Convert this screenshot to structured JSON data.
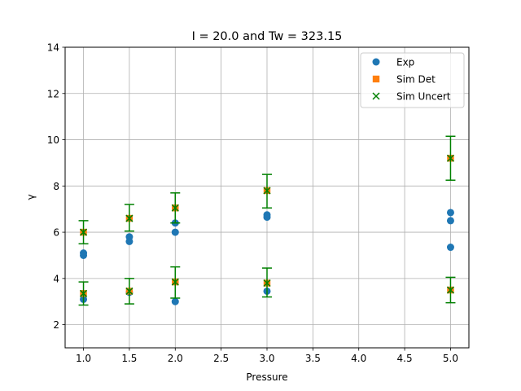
{
  "chart_data": {
    "type": "scatter",
    "title": "I = 20.0 and Tw = 323.15",
    "xlabel": "Pressure",
    "ylabel": "γ",
    "xlim": [
      0.8,
      5.2
    ],
    "ylim": [
      1,
      14
    ],
    "xticks": [
      1.0,
      1.5,
      2.0,
      2.5,
      3.0,
      3.5,
      4.0,
      4.5,
      5.0
    ],
    "xtick_labels": [
      "1.0",
      "1.5",
      "2.0",
      "2.5",
      "3.0",
      "3.5",
      "4.0",
      "4.5",
      "5.0"
    ],
    "yticks": [
      2,
      4,
      6,
      8,
      10,
      12,
      14
    ],
    "ytick_labels": [
      "2",
      "4",
      "6",
      "8",
      "10",
      "12",
      "14"
    ],
    "grid": true,
    "legend_position": "top-right",
    "series": [
      {
        "name": "Exp",
        "marker": "circle",
        "color": "#1f77b4",
        "points": [
          {
            "x": 1.0,
            "y": 5.1
          },
          {
            "x": 1.0,
            "y": 5.0
          },
          {
            "x": 1.0,
            "y": 3.1
          },
          {
            "x": 1.5,
            "y": 5.8
          },
          {
            "x": 1.5,
            "y": 5.6
          },
          {
            "x": 1.5,
            "y": 3.4
          },
          {
            "x": 2.0,
            "y": 6.4
          },
          {
            "x": 2.0,
            "y": 6.0
          },
          {
            "x": 2.0,
            "y": 3.0
          },
          {
            "x": 3.0,
            "y": 6.75
          },
          {
            "x": 3.0,
            "y": 6.65
          },
          {
            "x": 3.0,
            "y": 3.45
          },
          {
            "x": 5.0,
            "y": 6.85
          },
          {
            "x": 5.0,
            "y": 6.5
          },
          {
            "x": 5.0,
            "y": 5.35
          }
        ]
      },
      {
        "name": "Sim Det",
        "marker": "square",
        "color": "#ff7f0e",
        "points": [
          {
            "x": 1.0,
            "y": 6.0
          },
          {
            "x": 1.0,
            "y": 3.35
          },
          {
            "x": 1.5,
            "y": 6.6
          },
          {
            "x": 1.5,
            "y": 3.45
          },
          {
            "x": 2.0,
            "y": 7.05
          },
          {
            "x": 2.0,
            "y": 3.85
          },
          {
            "x": 3.0,
            "y": 7.8
          },
          {
            "x": 3.0,
            "y": 3.8
          },
          {
            "x": 5.0,
            "y": 9.2
          },
          {
            "x": 5.0,
            "y": 3.5
          }
        ]
      },
      {
        "name": "Sim Uncert",
        "marker": "x",
        "color": "#008000",
        "points": [
          {
            "x": 1.0,
            "y": 6.0,
            "ylow": 5.5,
            "yhigh": 6.5
          },
          {
            "x": 1.0,
            "y": 3.35,
            "ylow": 2.85,
            "yhigh": 3.85
          },
          {
            "x": 1.5,
            "y": 6.6,
            "ylow": 6.05,
            "yhigh": 7.2
          },
          {
            "x": 1.5,
            "y": 3.45,
            "ylow": 2.9,
            "yhigh": 4.0
          },
          {
            "x": 2.0,
            "y": 7.05,
            "ylow": 6.4,
            "yhigh": 7.7
          },
          {
            "x": 2.0,
            "y": 3.85,
            "ylow": 3.15,
            "yhigh": 4.5
          },
          {
            "x": 3.0,
            "y": 7.8,
            "ylow": 7.05,
            "yhigh": 8.5
          },
          {
            "x": 3.0,
            "y": 3.8,
            "ylow": 3.2,
            "yhigh": 4.45
          },
          {
            "x": 5.0,
            "y": 9.2,
            "ylow": 8.25,
            "yhigh": 10.15
          },
          {
            "x": 5.0,
            "y": 3.5,
            "ylow": 2.95,
            "yhigh": 4.05
          }
        ]
      }
    ]
  }
}
